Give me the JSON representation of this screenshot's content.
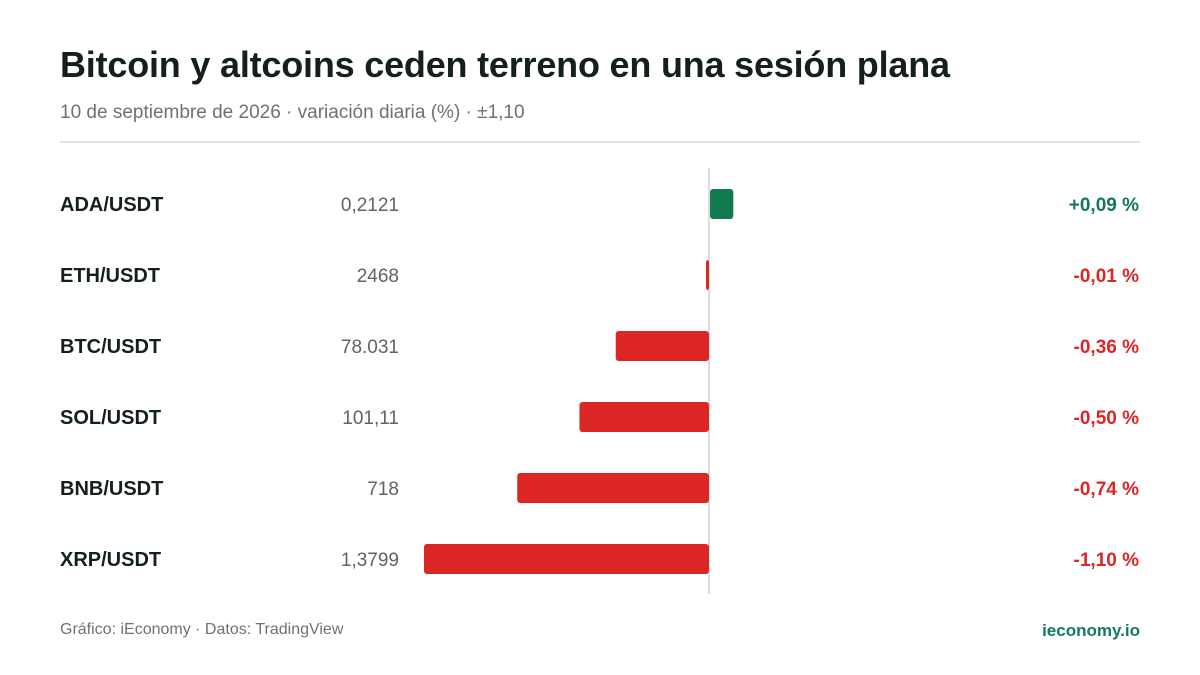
{
  "header": {
    "title": "Bitcoin y altcoins ceden terreno en una sesión plana",
    "subtitle": "10 de septiembre de 2026 · variación diaria (%) · ±1,10"
  },
  "colors": {
    "positive": "#127a4f",
    "negative": "#dc2626",
    "axis": "#d9dcdb",
    "label": "#14201c",
    "price": "#5d6562"
  },
  "chart_data": {
    "type": "bar",
    "orientation": "horizontal",
    "categories": [
      "ADA/USDT",
      "ETH/USDT",
      "BTC/USDT",
      "SOL/USDT",
      "BNB/USDT",
      "XRP/USDT"
    ],
    "prices": [
      "0,2121",
      "2468",
      "78.031",
      "101,11",
      "718",
      "1,3799"
    ],
    "values": [
      0.09,
      -0.01,
      -0.36,
      -0.5,
      -0.74,
      -1.1
    ],
    "value_labels": [
      "+0,09 %",
      "-0,01 %",
      "-0,36 %",
      "-0,50 %",
      "-0,74 %",
      "-1,10 %"
    ],
    "xlim": [
      -1.1,
      1.1
    ],
    "grid": false,
    "legend": "none"
  },
  "footer": {
    "source": "Gráfico: iEconomy · Datos: TradingView",
    "brand": "ieconomy.io"
  }
}
